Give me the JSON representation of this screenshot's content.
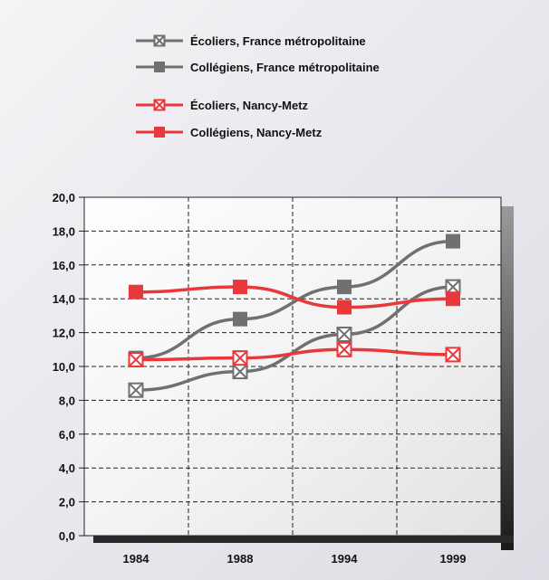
{
  "chart_data": {
    "type": "line",
    "title": "",
    "xlabel": "",
    "ylabel": "",
    "categories": [
      "1984",
      "1988",
      "1994",
      "1999"
    ],
    "ylim": [
      0,
      20
    ],
    "yticks": [
      "0,0",
      "2,0",
      "4,0",
      "6,0",
      "8,0",
      "10,0",
      "12,0",
      "14,0",
      "16,0",
      "18,0",
      "20,0"
    ],
    "grid": true,
    "legend_position": "top",
    "series": [
      {
        "name": "Écoliers, France métropolitaine",
        "values": [
          8.6,
          9.7,
          11.9,
          14.7
        ],
        "color": "#707070",
        "marker": "x-square"
      },
      {
        "name": "Collégiens, France métropolitaine",
        "values": [
          10.5,
          12.8,
          14.7,
          17.4
        ],
        "color": "#707070",
        "marker": "square"
      },
      {
        "name": "Écoliers, Nancy-Metz",
        "values": [
          10.4,
          10.5,
          11.0,
          10.7
        ],
        "color": "#e8383b",
        "marker": "x-square"
      },
      {
        "name": "Collégiens, Nancy-Metz",
        "values": [
          14.4,
          14.7,
          13.5,
          14.0
        ],
        "color": "#e8383b",
        "marker": "square"
      }
    ]
  }
}
